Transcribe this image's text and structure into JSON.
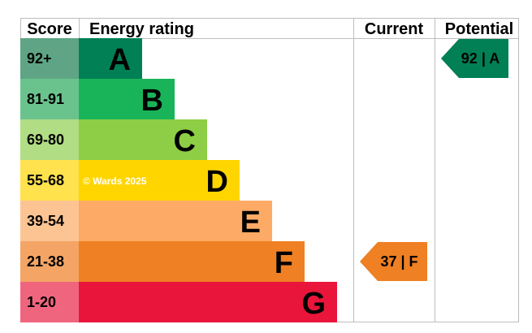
{
  "chart_data": {
    "type": "bar",
    "headers": {
      "score": "Score",
      "rating": "Energy rating",
      "current": "Current",
      "potential": "Potential"
    },
    "bands": [
      {
        "letter": "A",
        "range": "92+",
        "color": "#008054",
        "score_color": "#5fa585"
      },
      {
        "letter": "B",
        "range": "81-91",
        "color": "#19b459",
        "score_color": "#6ac38d"
      },
      {
        "letter": "C",
        "range": "69-80",
        "color": "#8dce46",
        "score_color": "#b1dd84"
      },
      {
        "letter": "D",
        "range": "55-68",
        "color": "#ffd500",
        "score_color": "#ffe24d"
      },
      {
        "letter": "E",
        "range": "39-54",
        "color": "#fcaa65",
        "score_color": "#fdc493"
      },
      {
        "letter": "F",
        "range": "21-38",
        "color": "#ef8023",
        "score_color": "#f4a565"
      },
      {
        "letter": "G",
        "range": "1-20",
        "color": "#e9153b",
        "score_color": "#f0657e"
      }
    ],
    "current": {
      "value": 37,
      "band": "F",
      "label": "37 | F",
      "color": "#ef8023"
    },
    "potential": {
      "value": 92,
      "band": "A",
      "label": "92 | A",
      "color": "#008054"
    },
    "watermark": "© Wards 2025"
  }
}
